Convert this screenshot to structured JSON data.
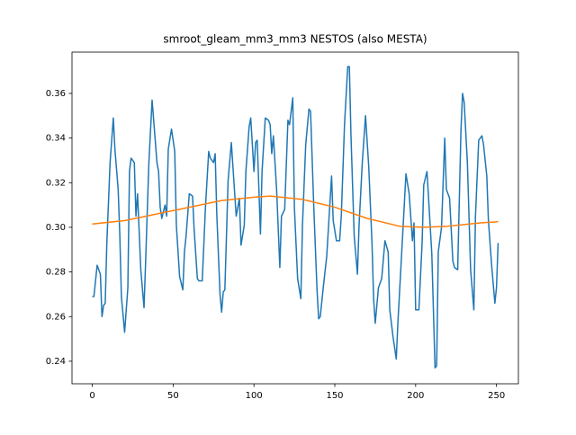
{
  "chart_data": {
    "type": "line",
    "title": "smroot_gleam_mm3_mm3 NESTOS (also MESTA)",
    "series": [
      {
        "color": "#1f77b4",
        "x": [
          0,
          1,
          3,
          5,
          6,
          7,
          8,
          9,
          11,
          13,
          14,
          16,
          17,
          18,
          20,
          22,
          23,
          24,
          26,
          27,
          28,
          30,
          32,
          33,
          35,
          37,
          40,
          41,
          42,
          43,
          45,
          46,
          47,
          49,
          51,
          52,
          54,
          56,
          57,
          58,
          60,
          62,
          63,
          65,
          66,
          68,
          70,
          72,
          73,
          75,
          76,
          77,
          79,
          80,
          81,
          82,
          84,
          86,
          87,
          89,
          91,
          92,
          94,
          95,
          97,
          98,
          100,
          101,
          102,
          104,
          105,
          107,
          109,
          110,
          111,
          112,
          114,
          116,
          117,
          119,
          121,
          122,
          124,
          125,
          127,
          129,
          130,
          132,
          134,
          135,
          137,
          139,
          140,
          141,
          143,
          145,
          148,
          149,
          151,
          153,
          154,
          156,
          158,
          159,
          160,
          162,
          164,
          165,
          167,
          169,
          171,
          173,
          174,
          175,
          177,
          179,
          181,
          183,
          184,
          186,
          188,
          189,
          192,
          194,
          196,
          198,
          199,
          200,
          202,
          204,
          205,
          207,
          208,
          210,
          212,
          213,
          214,
          216,
          218,
          219,
          221,
          223,
          224,
          226,
          228,
          229,
          230,
          232,
          234,
          236,
          237,
          239,
          241,
          242,
          244,
          245,
          247,
          249,
          250,
          251
        ],
        "values": [
          0.269,
          0.269,
          0.283,
          0.279,
          0.26,
          0.265,
          0.266,
          0.293,
          0.329,
          0.349,
          0.335,
          0.317,
          0.297,
          0.269,
          0.253,
          0.273,
          0.325,
          0.331,
          0.329,
          0.305,
          0.315,
          0.281,
          0.264,
          0.285,
          0.329,
          0.357,
          0.329,
          0.325,
          0.309,
          0.304,
          0.31,
          0.305,
          0.335,
          0.344,
          0.334,
          0.301,
          0.278,
          0.272,
          0.289,
          0.296,
          0.315,
          0.314,
          0.299,
          0.277,
          0.276,
          0.276,
          0.309,
          0.334,
          0.331,
          0.329,
          0.333,
          0.306,
          0.27,
          0.262,
          0.271,
          0.272,
          0.321,
          0.338,
          0.327,
          0.305,
          0.313,
          0.292,
          0.301,
          0.325,
          0.345,
          0.349,
          0.325,
          0.338,
          0.339,
          0.297,
          0.325,
          0.349,
          0.348,
          0.346,
          0.333,
          0.341,
          0.317,
          0.282,
          0.305,
          0.308,
          0.348,
          0.346,
          0.358,
          0.309,
          0.277,
          0.268,
          0.301,
          0.337,
          0.353,
          0.352,
          0.309,
          0.272,
          0.259,
          0.26,
          0.274,
          0.287,
          0.323,
          0.303,
          0.294,
          0.294,
          0.305,
          0.346,
          0.372,
          0.372,
          0.341,
          0.296,
          0.279,
          0.301,
          0.329,
          0.35,
          0.327,
          0.293,
          0.268,
          0.257,
          0.273,
          0.277,
          0.294,
          0.289,
          0.263,
          0.251,
          0.241,
          0.257,
          0.297,
          0.324,
          0.315,
          0.294,
          0.302,
          0.263,
          0.263,
          0.293,
          0.319,
          0.325,
          0.313,
          0.288,
          0.237,
          0.238,
          0.289,
          0.3,
          0.34,
          0.317,
          0.313,
          0.285,
          0.282,
          0.281,
          0.343,
          0.36,
          0.356,
          0.329,
          0.281,
          0.263,
          0.305,
          0.339,
          0.341,
          0.337,
          0.323,
          0.303,
          0.283,
          0.266,
          0.273,
          0.293
        ]
      },
      {
        "color": "#ff7f0e",
        "x": [
          0,
          20,
          40,
          60,
          80,
          100,
          110,
          130,
          150,
          170,
          190,
          205,
          220,
          240,
          251
        ],
        "values": [
          0.3015,
          0.303,
          0.306,
          0.309,
          0.312,
          0.3135,
          0.314,
          0.3125,
          0.309,
          0.304,
          0.3005,
          0.3,
          0.3005,
          0.302,
          0.3025
        ]
      }
    ],
    "xlim": [
      -12.55,
      263.55
    ],
    "xticks": [
      0,
      50,
      100,
      150,
      200,
      250
    ],
    "ylim": [
      0.2299,
      0.3785
    ],
    "yticks": [
      0.24,
      0.26,
      0.28,
      {
        "value": 0.3,
        "label": "0.30"
      },
      0.32,
      0.34,
      0.36
    ]
  }
}
